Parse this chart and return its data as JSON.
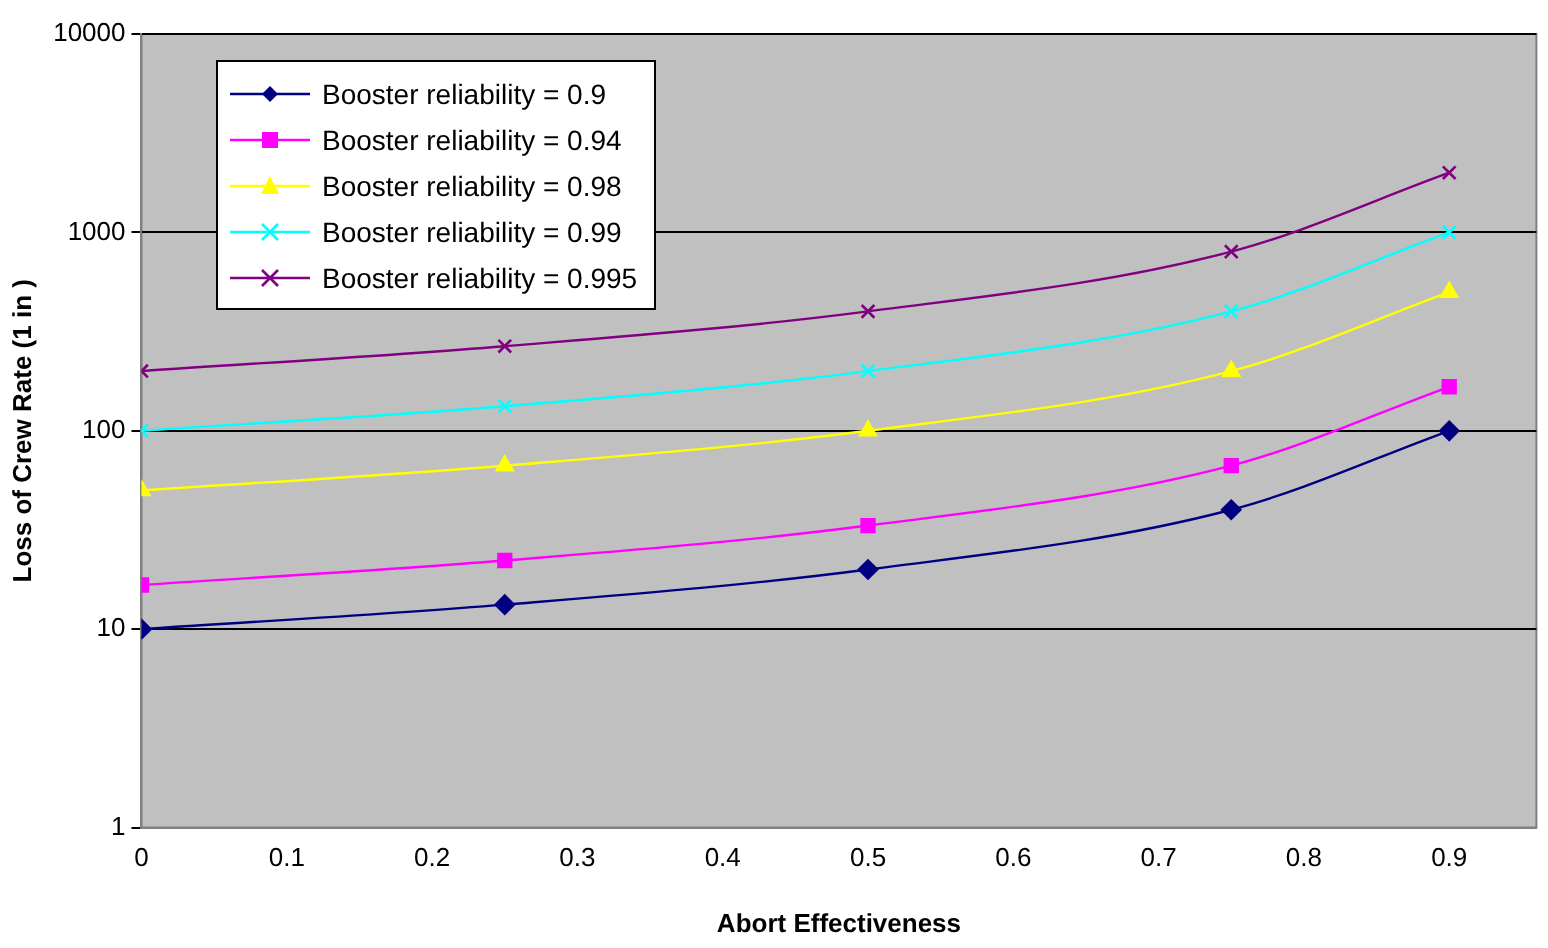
{
  "chart_data": {
    "type": "line",
    "xlabel": "Abort Effectiveness",
    "ylabel": "Loss of Crew Rate (1 in )",
    "x": [
      0,
      0.25,
      0.5,
      0.75,
      0.9
    ],
    "series": [
      {
        "name": "Booster reliability = 0.9",
        "color": "#000080",
        "marker": "diamond",
        "values": [
          10,
          13.3,
          20,
          40,
          100
        ]
      },
      {
        "name": "Booster reliability = 0.94",
        "color": "#ff00ff",
        "marker": "square",
        "values": [
          16.7,
          22.2,
          33.3,
          66.7,
          166.7
        ]
      },
      {
        "name": "Booster reliability = 0.98",
        "color": "#ffff00",
        "marker": "triangle",
        "values": [
          50,
          66.7,
          100,
          200,
          500
        ]
      },
      {
        "name": "Booster reliability = 0.99",
        "color": "#00ffff",
        "marker": "cross",
        "values": [
          100,
          133,
          200,
          400,
          1000
        ]
      },
      {
        "name": "Booster reliability = 0.995",
        "color": "#800080",
        "marker": "cross",
        "values": [
          200,
          267,
          400,
          800,
          2000
        ]
      }
    ],
    "xlim": [
      0,
      0.96
    ],
    "xticks": [
      0,
      0.1,
      0.2,
      0.3,
      0.4,
      0.5,
      0.6,
      0.7,
      0.8,
      0.9
    ],
    "ylim": [
      1,
      10000
    ],
    "yticks": [
      1,
      10,
      100,
      1000,
      10000
    ],
    "log": "y",
    "grid": "y",
    "legend": "top left",
    "line_style": "solid"
  }
}
